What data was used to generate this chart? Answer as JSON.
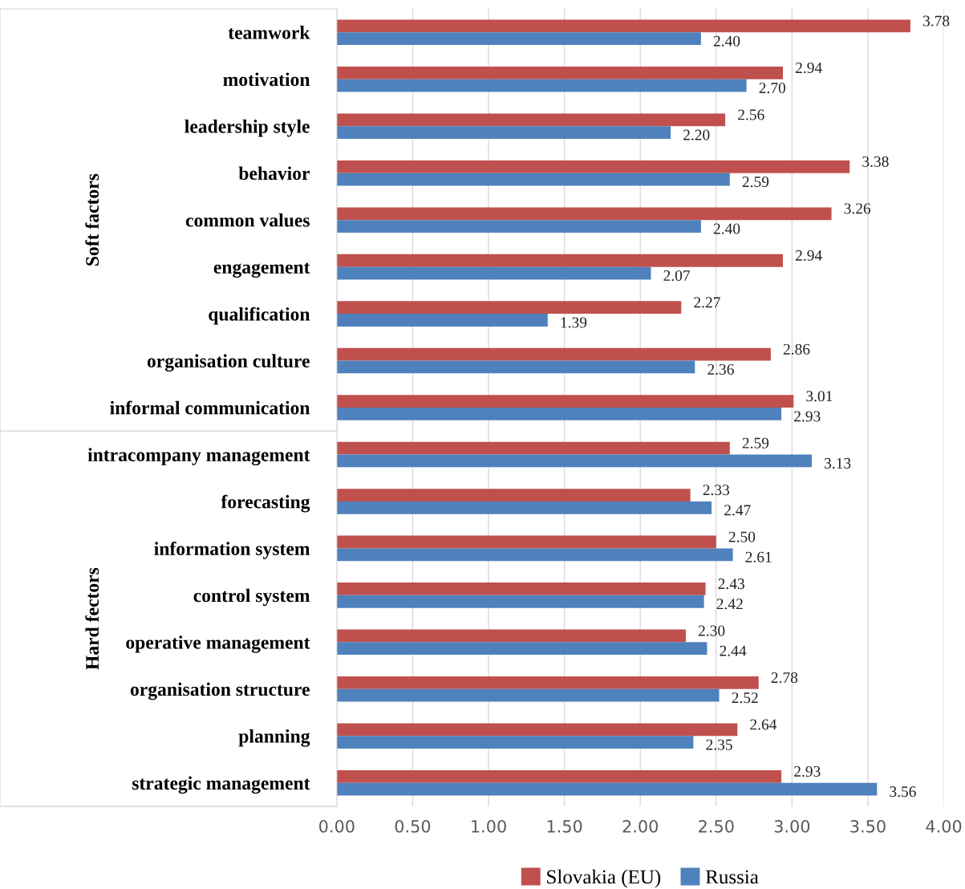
{
  "chart_data": {
    "type": "bar",
    "orientation": "horizontal",
    "categories": [
      "teamwork",
      "motivation",
      "leadership style",
      "behavior",
      "common values",
      "engagement",
      "qualification",
      "organisation culture",
      "informal communication",
      "intracompany management",
      "forecasting",
      "information system",
      "control system",
      "operative management",
      "organisation structure",
      "planning",
      "strategic management"
    ],
    "series": [
      {
        "name": "Slovakia (EU)",
        "color": "#c0504d",
        "values": [
          3.78,
          2.94,
          2.56,
          3.38,
          3.26,
          2.94,
          2.27,
          2.86,
          3.01,
          2.59,
          2.33,
          2.5,
          2.43,
          2.3,
          2.78,
          2.64,
          2.93
        ],
        "value_labels": [
          "3.78",
          "2.94",
          "2.56",
          "3.38",
          "3.26",
          "2.94",
          "2.27",
          "2.86",
          "3.01",
          "2.59",
          "2.33",
          "2.50",
          "2.43",
          "2.30",
          "2.78",
          "2.64",
          "2.93"
        ]
      },
      {
        "name": "Russia",
        "color": "#4f81bd",
        "values": [
          2.4,
          2.7,
          2.2,
          2.59,
          2.4,
          2.07,
          1.39,
          2.36,
          2.93,
          3.13,
          2.47,
          2.61,
          2.42,
          2.44,
          2.52,
          2.35,
          3.56
        ],
        "value_labels": [
          "2.40",
          "2.70",
          "2.20",
          "2.59",
          "2.40",
          "2.07",
          "1.39",
          "2.36",
          "2.93",
          "3.13",
          "2.47",
          "2.61",
          "2.42",
          "2.44",
          "2.52",
          "2.35",
          "3.56"
        ]
      }
    ],
    "xlim": [
      0,
      4
    ],
    "xticks": [
      {
        "value": 0,
        "label": "0.00"
      },
      {
        "value": 0.5,
        "label": "0.50"
      },
      {
        "value": 1,
        "label": "1.00"
      },
      {
        "value": 1.5,
        "label": "1.50"
      },
      {
        "value": 2,
        "label": "2.00"
      },
      {
        "value": 2.5,
        "label": "2.50"
      },
      {
        "value": 3,
        "label": "3.00"
      },
      {
        "value": 3.5,
        "label": "3.50"
      },
      {
        "value": 4,
        "label": "4.00"
      }
    ],
    "grid": "x",
    "legend": "bottom",
    "annotations": [
      "Soft factors",
      "Hard fectors"
    ]
  }
}
